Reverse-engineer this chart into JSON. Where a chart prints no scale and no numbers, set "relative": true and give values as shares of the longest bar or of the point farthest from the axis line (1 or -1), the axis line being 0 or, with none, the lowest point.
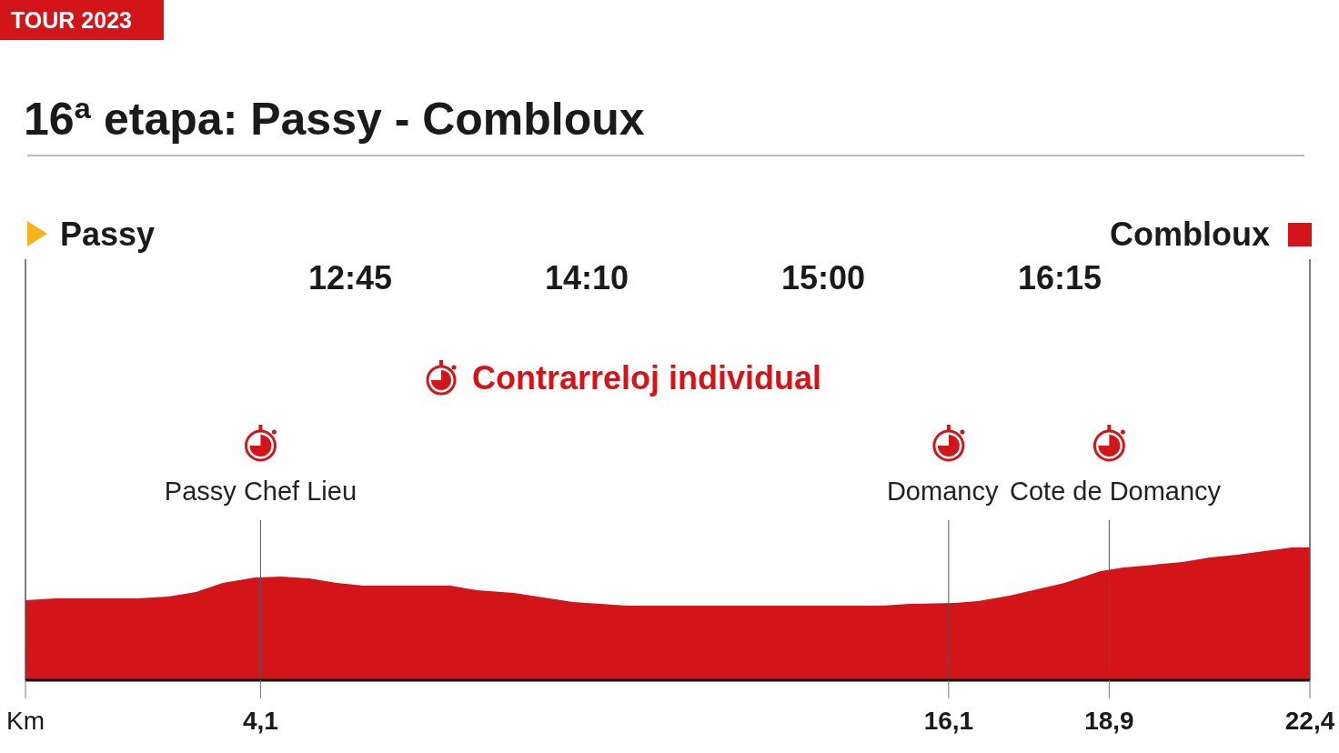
{
  "chart_data": {
    "type": "area",
    "title": "16ª etapa: Passy - Combloux",
    "relative": true,
    "color": "#d31418",
    "x": [
      0,
      0.51,
      1.94,
      2.49,
      2.97,
      3.44,
      4.0,
      4.47,
      4.95,
      5.43,
      5.9,
      7.41,
      7.88,
      8.52,
      9.55,
      10.5,
      14.94,
      15.42,
      16.21,
      16.61,
      17.16,
      18.12,
      18.75,
      19.15,
      20.18,
      20.65,
      21.13,
      22.08,
      22.4
    ],
    "values": [
      0.603,
      0.616,
      0.616,
      0.63,
      0.664,
      0.733,
      0.774,
      0.781,
      0.767,
      0.733,
      0.712,
      0.712,
      0.678,
      0.658,
      0.589,
      0.562,
      0.562,
      0.575,
      0.582,
      0.596,
      0.637,
      0.733,
      0.822,
      0.849,
      0.89,
      0.925,
      0.945,
      1,
      1
    ],
    "xlim": [
      0,
      22.4
    ],
    "xticks": [
      {
        "value": 0,
        "label": "Km"
      },
      {
        "value": 4.1,
        "label": "4,1"
      },
      {
        "value": 16.1,
        "label": "16,1"
      },
      {
        "value": 18.9,
        "label": "18,9"
      },
      {
        "value": 22.4,
        "label": "22,4"
      }
    ],
    "ref_lines": [
      {
        "axis": "x",
        "value": 0,
        "label": "Passy"
      },
      {
        "axis": "x",
        "value": 4.1,
        "label": "Passy Chef Lieu"
      },
      {
        "axis": "x",
        "value": 16.1,
        "label": "Domancy"
      },
      {
        "axis": "x",
        "value": 18.9,
        "label": "Cote de Domancy"
      },
      {
        "axis": "x",
        "value": 22.4,
        "label": "Combloux"
      }
    ],
    "annotations": [
      "TOUR 2023",
      "12:45",
      "14:10",
      "15:00",
      "16:15",
      "Contrarreloj individual"
    ]
  }
}
